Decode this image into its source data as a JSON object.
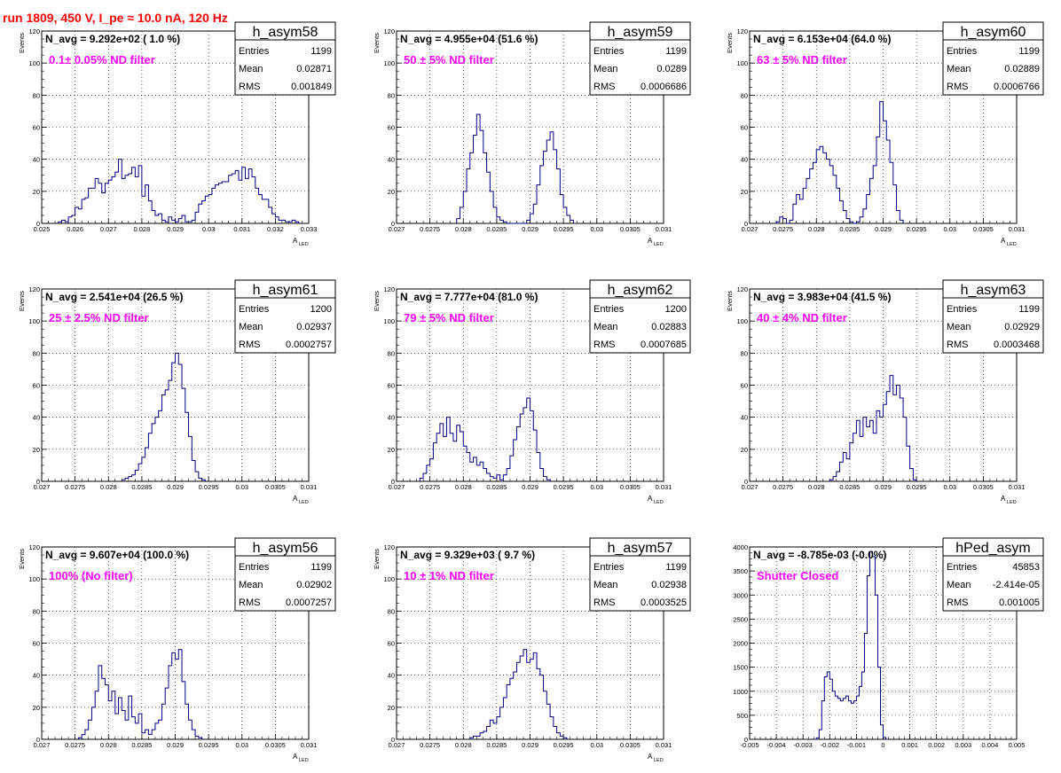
{
  "title": "run 1809,   450 V, I_pe ≈ 10.0 nA, 120 Hz",
  "stats_labels": {
    "entries": "Entries",
    "mean": "Mean",
    "rms": "RMS"
  },
  "chart_data": [
    {
      "type": "bar",
      "name": "h_asym58",
      "navg": "N_avg = 9.292e+02 ( 1.0 %)",
      "filter": "0.1± 0.05% ND filter",
      "entries": "1199",
      "mean": "0.02871",
      "rms": "0.001849",
      "ylabel": "Events",
      "xlabel": "A",
      "xlabel_sub": "LED",
      "xlim": [
        0.025,
        0.033
      ],
      "ylim": [
        0,
        120
      ],
      "xticks": [
        "0.025",
        "0.026",
        "0.027",
        "0.028",
        "0.029",
        "0.03",
        "0.031",
        "0.032",
        "0.033"
      ],
      "yticks": [
        "0",
        "20",
        "40",
        "60",
        "80",
        "100",
        "120"
      ],
      "bins": {
        "x0": 0.0255,
        "w": 0.0001,
        "y": [
          1,
          2,
          1,
          4,
          5,
          10,
          9,
          15,
          16,
          22,
          22,
          28,
          25,
          19,
          25,
          27,
          29,
          32,
          40,
          28,
          30,
          31,
          35,
          29,
          36,
          17,
          24,
          14,
          8,
          5,
          6,
          2,
          1,
          4,
          2,
          1,
          3,
          5,
          1,
          1,
          2,
          7,
          12,
          14,
          17,
          18,
          22,
          24,
          25,
          26,
          26,
          30,
          31,
          33,
          27,
          35,
          28,
          34,
          29,
          22,
          18,
          15,
          15,
          10,
          6,
          4,
          2,
          2,
          1,
          1,
          2,
          1
        ]
      }
    },
    {
      "type": "bar",
      "name": "h_asym59",
      "navg": "N_avg = 4.955e+04 (51.6 %)",
      "filter": "50 ± 5% ND filter",
      "entries": "1199",
      "mean": "0.0289",
      "rms": "0.0006686",
      "ylabel": "Events",
      "xlabel": "A",
      "xlabel_sub": "LED",
      "xlim": [
        0.027,
        0.031
      ],
      "ylim": [
        0,
        120
      ],
      "xticks": [
        "0.027",
        "0.0275",
        "0.028",
        "0.0285",
        "0.029",
        "0.0295",
        "0.03",
        "0.0305",
        "0.031"
      ],
      "yticks": [
        "0",
        "20",
        "40",
        "60",
        "80",
        "100",
        "120"
      ],
      "bins": {
        "x0": 0.0279,
        "w": 5e-05,
        "y": [
          3,
          10,
          20,
          34,
          44,
          55,
          68,
          58,
          44,
          32,
          20,
          10,
          4,
          2,
          1,
          0,
          0,
          0,
          0,
          0,
          0,
          2,
          6,
          12,
          24,
          36,
          45,
          52,
          57,
          46,
          34,
          18,
          10,
          5,
          2
        ]
      }
    },
    {
      "type": "bar",
      "name": "h_asym60",
      "navg": "N_avg = 6.153e+04 (64.0 %)",
      "filter": "63 ± 5% ND filter",
      "entries": "1199",
      "mean": "0.02889",
      "rms": "0.0006766",
      "ylabel": "Events",
      "xlabel": "A",
      "xlabel_sub": "LED",
      "xlim": [
        0.027,
        0.031
      ],
      "ylim": [
        0,
        120
      ],
      "xticks": [
        "0.027",
        "0.0275",
        "0.028",
        "0.0285",
        "0.029",
        "0.0295",
        "0.03",
        "0.0305",
        "0.031"
      ],
      "yticks": [
        "0",
        "20",
        "40",
        "60",
        "80",
        "100",
        "120"
      ],
      "bins": {
        "x0": 0.0274,
        "w": 5e-05,
        "y": [
          1,
          4,
          3,
          0,
          2,
          12,
          18,
          15,
          22,
          28,
          34,
          38,
          46,
          48,
          44,
          40,
          36,
          30,
          22,
          14,
          8,
          3,
          1,
          0,
          1,
          4,
          9,
          18,
          28,
          36,
          54,
          76,
          64,
          52,
          38,
          24,
          8,
          2
        ]
      }
    },
    {
      "type": "bar",
      "name": "h_asym61",
      "navg": "N_avg = 2.541e+04 (26.5 %)",
      "filter": "25 ± 2.5% ND filter",
      "entries": "1200",
      "mean": "0.02937",
      "rms": "0.0002757",
      "ylabel": "Events",
      "xlabel": "A",
      "xlabel_sub": "LED",
      "xlim": [
        0.027,
        0.031
      ],
      "ylim": [
        0,
        120
      ],
      "xticks": [
        "0.027",
        "0.0275",
        "0.028",
        "0.0285",
        "0.029",
        "0.0295",
        "0.03",
        "0.0305",
        "0.031"
      ],
      "yticks": [
        "0",
        "20",
        "40",
        "60",
        "80",
        "100",
        "120"
      ],
      "bins": {
        "x0": 0.0282,
        "w": 5e-05,
        "y": [
          1,
          2,
          3,
          4,
          7,
          11,
          15,
          21,
          30,
          36,
          40,
          44,
          54,
          57,
          63,
          74,
          80,
          73,
          58,
          43,
          28,
          13,
          6,
          2,
          1
        ]
      }
    },
    {
      "type": "bar",
      "name": "h_asym62",
      "navg": "N_avg = 7.777e+04 (81.0 %)",
      "filter": "79 ± 5% ND filter",
      "entries": "1200",
      "mean": "0.02883",
      "rms": "0.0007685",
      "ylabel": "Events",
      "xlabel": "A",
      "xlabel_sub": "LED",
      "xlim": [
        0.027,
        0.031
      ],
      "ylim": [
        0,
        120
      ],
      "xticks": [
        "0.027",
        "0.0275",
        "0.028",
        "0.0285",
        "0.029",
        "0.0295",
        "0.03",
        "0.0305",
        "0.031"
      ],
      "yticks": [
        "0",
        "20",
        "40",
        "60",
        "80",
        "100",
        "120"
      ],
      "bins": {
        "x0": 0.02735,
        "w": 5e-05,
        "y": [
          2,
          5,
          10,
          14,
          24,
          30,
          36,
          28,
          40,
          30,
          25,
          35,
          31,
          22,
          18,
          12,
          15,
          10,
          12,
          8,
          5,
          3,
          2,
          4,
          1,
          4,
          8,
          16,
          26,
          34,
          42,
          46,
          52,
          44,
          32,
          18,
          8,
          3,
          1
        ]
      }
    },
    {
      "type": "bar",
      "name": "h_asym63",
      "navg": "N_avg = 3.983e+04 (41.5 %)",
      "filter": "40 ± 4% ND filter",
      "entries": "1199",
      "mean": "0.02929",
      "rms": "0.0003468",
      "ylabel": "Events",
      "xlabel": "A",
      "xlabel_sub": "LED",
      "xlim": [
        0.027,
        0.031
      ],
      "ylim": [
        0,
        120
      ],
      "xticks": [
        "0.027",
        "0.0275",
        "0.028",
        "0.0285",
        "0.029",
        "0.0295",
        "0.03",
        "0.0305",
        "0.031"
      ],
      "yticks": [
        "0",
        "20",
        "40",
        "60",
        "80",
        "100",
        "120"
      ],
      "bins": {
        "x0": 0.0282,
        "w": 5e-05,
        "y": [
          1,
          3,
          6,
          12,
          18,
          14,
          24,
          30,
          38,
          28,
          40,
          34,
          38,
          30,
          44,
          40,
          48,
          56,
          66,
          54,
          60,
          52,
          40,
          22,
          8,
          1
        ]
      }
    },
    {
      "type": "bar",
      "name": "h_asym56",
      "navg": "N_avg = 9.607e+04 (100.0 %)",
      "filter": "100% (No filter)",
      "entries": "1199",
      "mean": "0.02902",
      "rms": "0.0007257",
      "ylabel": "Events",
      "xlabel": "A",
      "xlabel_sub": "LED",
      "xlim": [
        0.027,
        0.031
      ],
      "ylim": [
        0,
        120
      ],
      "xticks": [
        "0.027",
        "0.0275",
        "0.028",
        "0.0285",
        "0.029",
        "0.0295",
        "0.03",
        "0.0305",
        "0.031"
      ],
      "yticks": [
        "0",
        "20",
        "40",
        "60",
        "80",
        "100",
        "120"
      ],
      "bins": {
        "x0": 0.02755,
        "w": 5e-05,
        "y": [
          1,
          3,
          6,
          12,
          20,
          30,
          46,
          38,
          34,
          24,
          30,
          16,
          26,
          18,
          12,
          27,
          14,
          10,
          16,
          4,
          6,
          3,
          6,
          10,
          12,
          22,
          32,
          46,
          54,
          50,
          56,
          36,
          22,
          12,
          6,
          2,
          1
        ]
      }
    },
    {
      "type": "bar",
      "name": "h_asym57",
      "navg": "N_avg = 9.329e+03 ( 9.7 %)",
      "filter": "10 ± 1% ND filter",
      "entries": "1199",
      "mean": "0.02938",
      "rms": "0.0003525",
      "ylabel": "Events",
      "xlabel": "A",
      "xlabel_sub": "LED",
      "xlim": [
        0.027,
        0.031
      ],
      "ylim": [
        0,
        120
      ],
      "xticks": [
        "0.027",
        "0.0275",
        "0.028",
        "0.0285",
        "0.029",
        "0.0295",
        "0.03",
        "0.0305",
        "0.031"
      ],
      "yticks": [
        "0",
        "20",
        "40",
        "60",
        "80",
        "100",
        "120"
      ],
      "bins": {
        "x0": 0.0281,
        "w": 5e-05,
        "y": [
          1,
          2,
          2,
          4,
          5,
          8,
          12,
          10,
          14,
          20,
          26,
          34,
          38,
          42,
          48,
          52,
          56,
          48,
          50,
          54,
          44,
          40,
          30,
          22,
          14,
          8,
          4,
          2,
          1
        ]
      }
    },
    {
      "type": "bar",
      "name": "hPed_asym",
      "navg": "N_avg = -8.785e-03 (-0.0%)",
      "filter": "Shutter Closed",
      "entries": "45853",
      "mean": "-2.414e-05",
      "rms": "0.001005",
      "ylabel": "",
      "xlabel": "",
      "xlabel_sub": "",
      "xlim": [
        -0.005,
        0.005
      ],
      "ylim": [
        0,
        4000
      ],
      "xticks": [
        "-0.005",
        "-0.004",
        "-0.003",
        "-0.002",
        "-0.001",
        "0",
        "0.001",
        "0.002",
        "0.003",
        "0.004",
        "0.005"
      ],
      "yticks": [
        "0",
        "500",
        "1000",
        "1500",
        "2000",
        "2500",
        "3000",
        "3500",
        "4000"
      ],
      "bins": {
        "x0": -0.0026,
        "w": 0.0001,
        "y": [
          0,
          30,
          200,
          800,
          1300,
          1400,
          1250,
          1000,
          900,
          850,
          800,
          850,
          900,
          800,
          750,
          800,
          900,
          1100,
          1400,
          2200,
          3400,
          3900,
          3800,
          3000,
          1500,
          300,
          40,
          0
        ]
      }
    }
  ]
}
